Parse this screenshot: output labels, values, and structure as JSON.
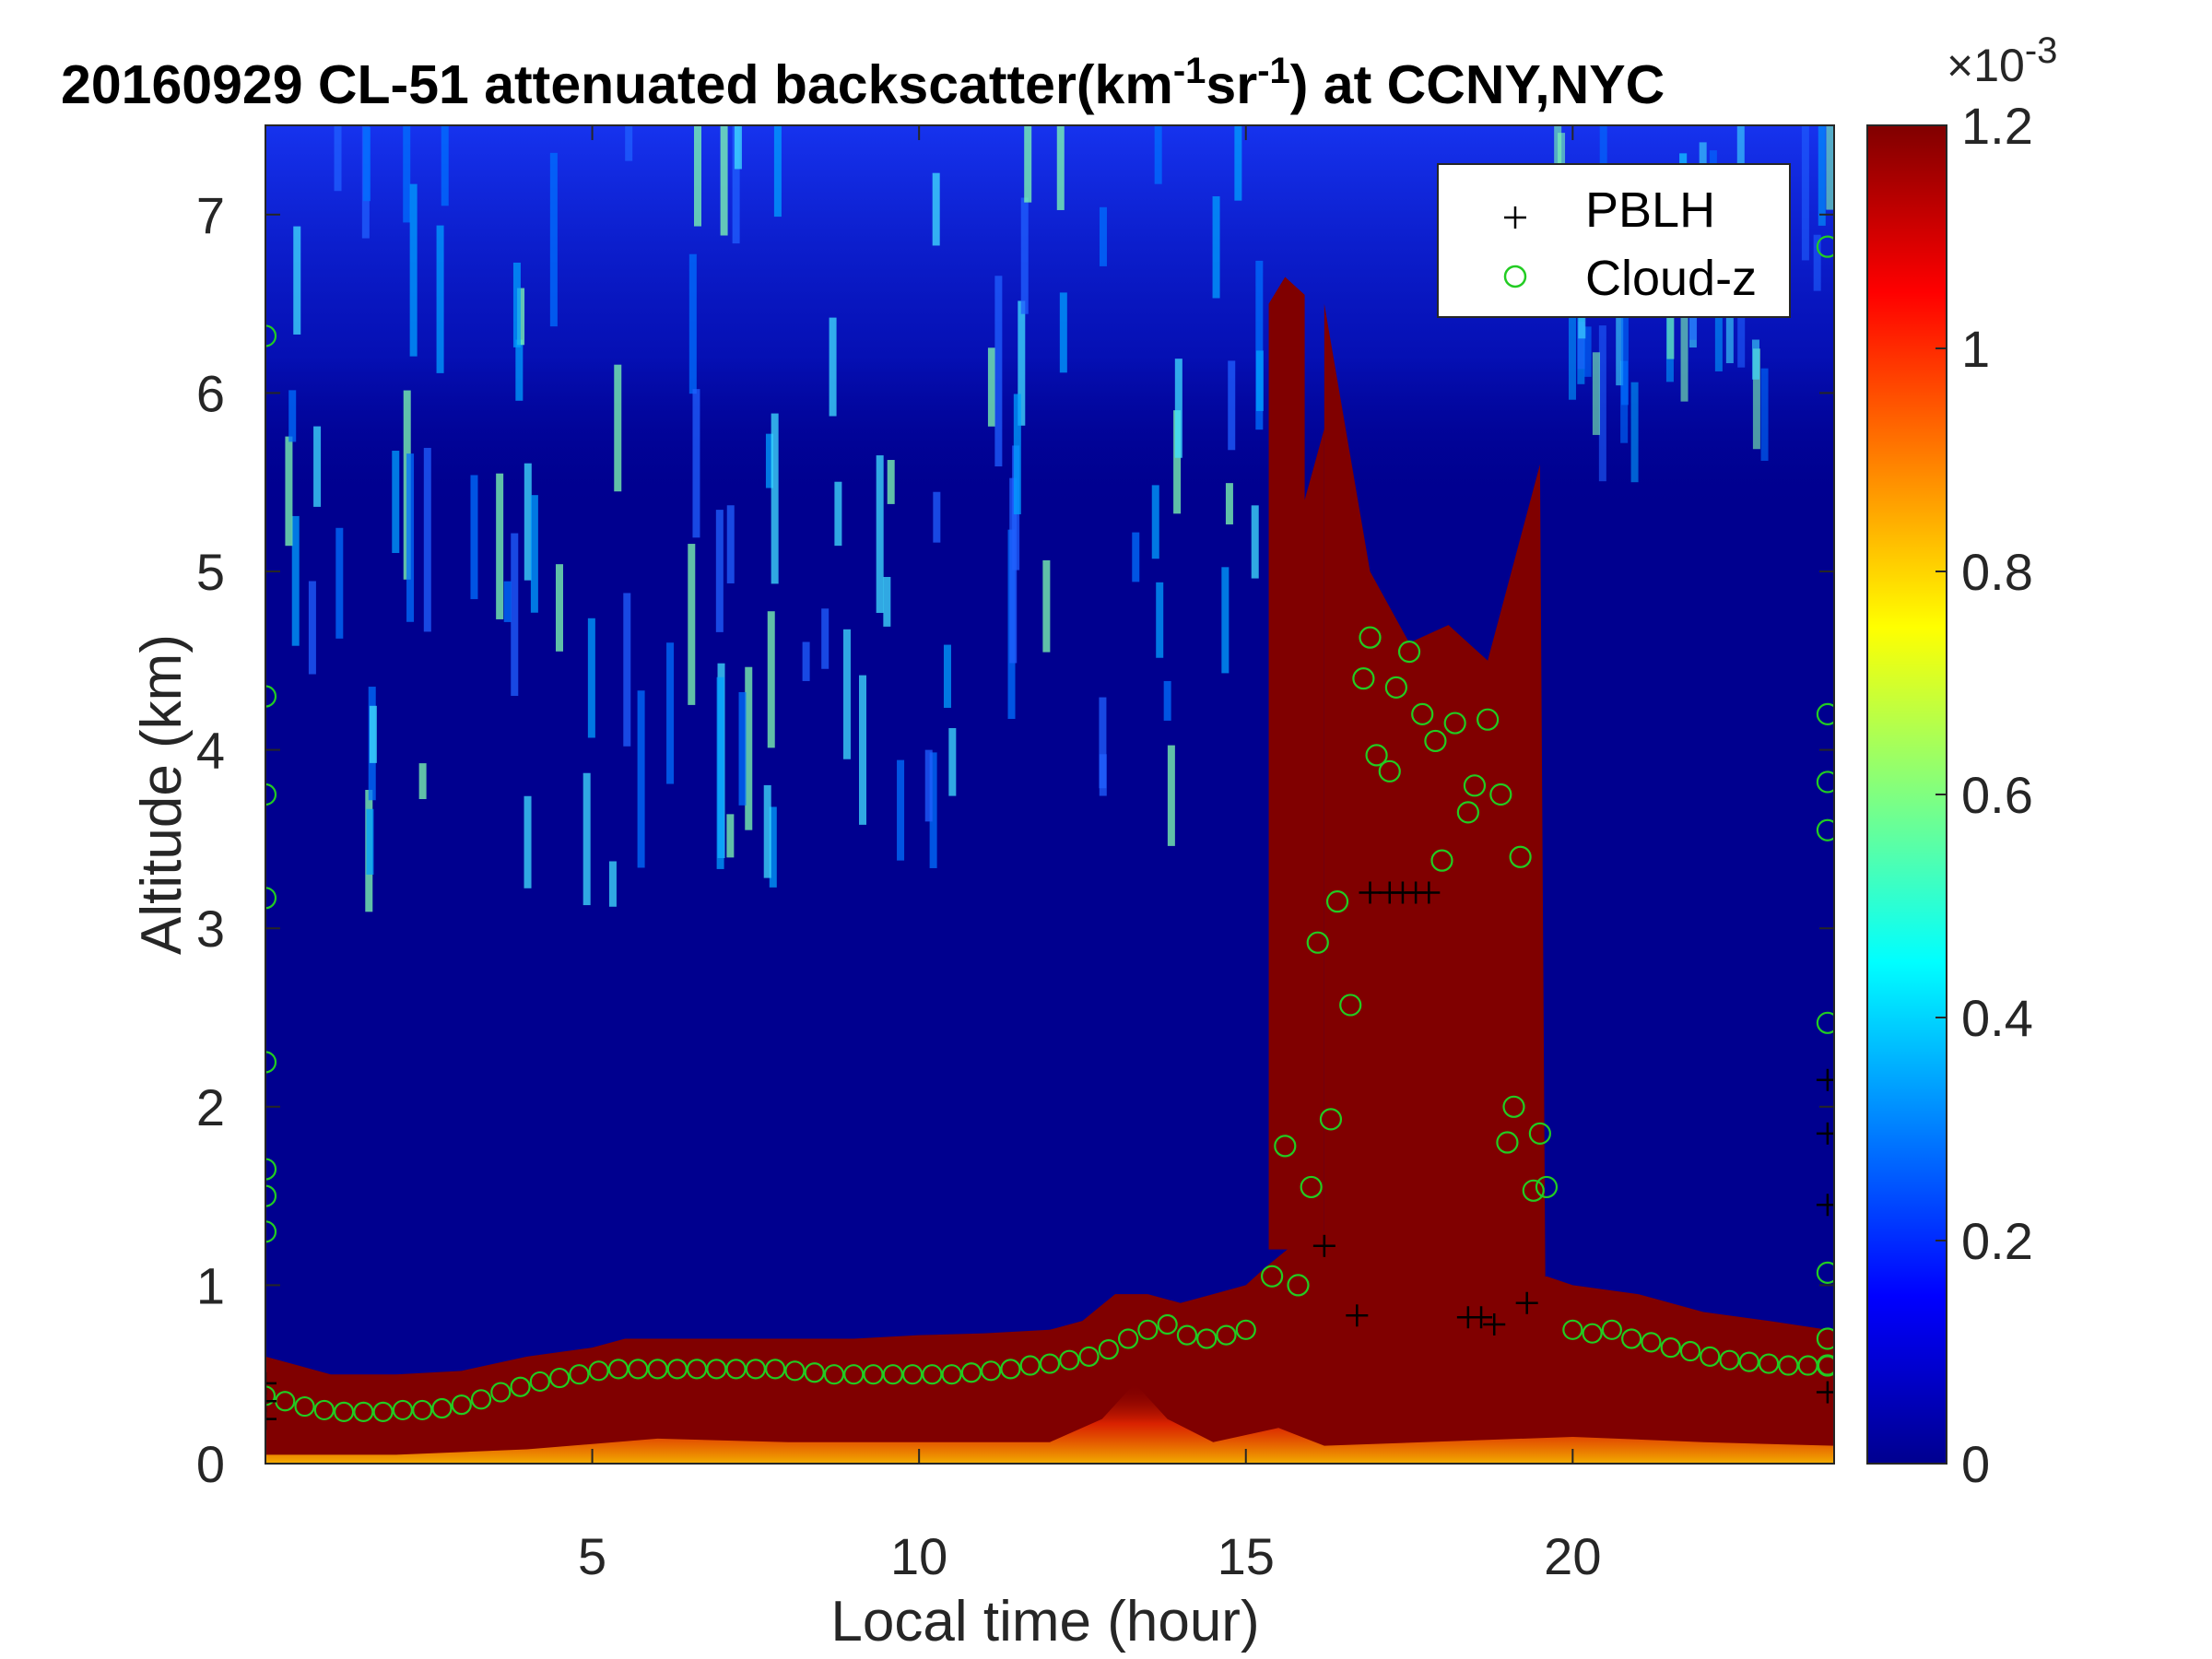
{
  "chart_data": {
    "type": "heatmap",
    "title": "20160929  CL-51 attenuated backscatter(km",
    "title_parts": {
      "sup1": "-1",
      "mid": "sr",
      "sup2": "-1",
      "end": ") at CCNY,NYC"
    },
    "xlabel": "Local time (hour)",
    "ylabel": "Altitude (km)",
    "xlim": [
      0,
      24
    ],
    "ylim": [
      0,
      7.5
    ],
    "x_ticks": [
      "5",
      "10",
      "15",
      "20"
    ],
    "y_ticks": [
      "0",
      "1",
      "2",
      "3",
      "4",
      "5",
      "6",
      "7"
    ],
    "colorbar": {
      "ticks": [
        "0",
        "0.2",
        "0.4",
        "0.6",
        "0.8",
        "1",
        "1.2"
      ],
      "clim": [
        0,
        1.2
      ],
      "exponent_base": "×10",
      "exponent": "-3",
      "colormap": "jet"
    },
    "legend": {
      "placement": "top-right",
      "entries": [
        "PBLH",
        "Cloud-z"
      ]
    },
    "colors": {
      "pblh_marker": "#000000",
      "cloud_marker": "#22cc22",
      "background_level": "#00008f",
      "saturated": "#800000"
    },
    "layer_top_km": {
      "x": [
        0.0,
        0.5,
        1.0,
        2.0,
        3.0,
        4.0,
        5.0,
        5.5,
        6.0,
        7.0,
        8.0,
        9.0,
        10.0,
        11.0,
        12.0,
        12.5,
        13.0,
        13.5,
        14.0,
        14.5,
        15.0,
        15.3,
        15.8,
        16.2,
        17.0,
        18.0,
        19.0,
        19.6,
        20.0,
        21.0,
        22.0,
        23.0,
        23.9
      ],
      "y": [
        0.6,
        0.55,
        0.5,
        0.5,
        0.52,
        0.6,
        0.65,
        0.7,
        0.7,
        0.7,
        0.7,
        0.7,
        0.72,
        0.73,
        0.75,
        0.8,
        0.95,
        0.95,
        0.9,
        0.95,
        1.0,
        1.1,
        1.25,
        1.3,
        1.1,
        1.0,
        0.95,
        1.05,
        1.0,
        0.95,
        0.85,
        0.8,
        0.75
      ]
    },
    "cloud_event": {
      "x_start": 16.2,
      "x_end": 19.6,
      "top_km": [
        6.5,
        5.0,
        4.6,
        4.7,
        4.5,
        5.6
      ],
      "top_x": [
        16.2,
        16.9,
        17.5,
        18.1,
        18.7,
        19.5
      ]
    },
    "pblh": {
      "x": [
        0.0,
        0.0,
        0.0,
        16.2,
        16.7,
        16.9,
        17.2,
        17.4,
        17.6,
        17.8,
        18.4,
        18.6,
        18.8,
        19.3,
        23.9,
        23.9,
        23.9,
        23.9
      ],
      "y": [
        0.45,
        0.35,
        0.25,
        1.22,
        0.83,
        3.2,
        3.2,
        3.2,
        3.2,
        3.2,
        0.82,
        0.82,
        0.78,
        0.9,
        1.45,
        1.85,
        2.15,
        0.4
      ]
    },
    "cloud_z": {
      "x": [
        15.4,
        15.6,
        15.8,
        16.0,
        16.1,
        16.3,
        16.4,
        16.6,
        16.8,
        16.9,
        17.0,
        17.2,
        17.3,
        17.5,
        17.7,
        17.9,
        18.0,
        18.2,
        18.4,
        18.5,
        18.7,
        18.9,
        19.0,
        19.1,
        19.2,
        19.4,
        19.5,
        19.6,
        0.0,
        0.0,
        0.0,
        0.0,
        0.0,
        0.0,
        0.0,
        0.0,
        23.9,
        23.9,
        23.9,
        23.9,
        23.9,
        23.9,
        23.9,
        23.9
      ],
      "y": [
        1.05,
        1.78,
        1.0,
        1.55,
        2.92,
        1.93,
        3.15,
        2.57,
        4.4,
        4.63,
        3.97,
        3.88,
        4.35,
        4.55,
        4.2,
        4.05,
        3.38,
        4.15,
        3.65,
        3.8,
        4.17,
        3.75,
        1.8,
        2.0,
        3.4,
        1.53,
        1.85,
        1.55,
        6.32,
        4.3,
        3.75,
        3.17,
        2.25,
        1.65,
        1.5,
        1.3,
        6.82,
        4.2,
        3.82,
        3.55,
        2.47,
        1.07,
        0.7,
        0.55
      ],
      "layer_top_x": [
        0.0,
        0.3,
        0.6,
        0.9,
        1.2,
        1.5,
        1.8,
        2.1,
        2.4,
        2.7,
        3.0,
        3.3,
        3.6,
        3.9,
        4.2,
        4.5,
        4.8,
        5.1,
        5.4,
        5.7,
        6.0,
        6.3,
        6.6,
        6.9,
        7.2,
        7.5,
        7.8,
        8.1,
        8.4,
        8.7,
        9.0,
        9.3,
        9.6,
        9.9,
        10.2,
        10.5,
        10.8,
        11.1,
        11.4,
        11.7,
        12.0,
        12.3,
        12.6,
        12.9,
        13.2,
        13.5,
        13.8,
        14.1,
        14.4,
        14.7,
        15.0,
        20.0,
        20.3,
        20.6,
        20.9,
        21.2,
        21.5,
        21.8,
        22.1,
        22.4,
        22.7,
        23.0,
        23.3,
        23.6,
        23.9
      ],
      "layer_top_y": [
        0.38,
        0.35,
        0.32,
        0.3,
        0.29,
        0.29,
        0.29,
        0.3,
        0.3,
        0.31,
        0.33,
        0.36,
        0.4,
        0.43,
        0.46,
        0.48,
        0.5,
        0.52,
        0.53,
        0.53,
        0.53,
        0.53,
        0.53,
        0.53,
        0.53,
        0.53,
        0.53,
        0.52,
        0.51,
        0.5,
        0.5,
        0.5,
        0.5,
        0.5,
        0.5,
        0.5,
        0.51,
        0.52,
        0.53,
        0.55,
        0.56,
        0.58,
        0.6,
        0.64,
        0.7,
        0.75,
        0.78,
        0.72,
        0.7,
        0.72,
        0.75,
        0.75,
        0.73,
        0.75,
        0.7,
        0.68,
        0.65,
        0.63,
        0.6,
        0.58,
        0.57,
        0.56,
        0.55,
        0.55,
        0.55
      ]
    }
  }
}
